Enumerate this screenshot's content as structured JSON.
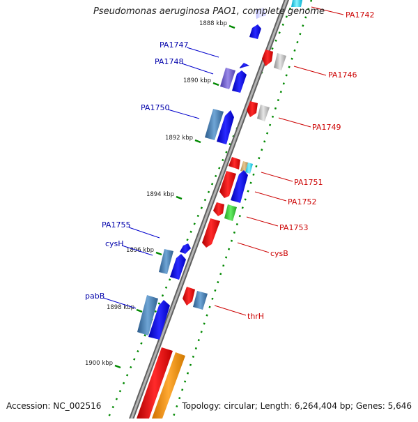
{
  "map": {
    "title": "Pseudomonas aeruginosa PAO1, complete genome",
    "accession": "Accession: NC_002516",
    "summary": "Topology: circular; Length: 6,264,404 bp; Genes: 5,646"
  },
  "scale_ticks": [
    {
      "label": "1888 kbp"
    },
    {
      "label": "1890 kbp"
    },
    {
      "label": "1892 kbp"
    },
    {
      "label": "1894 kbp"
    },
    {
      "label": "1896 kbp"
    },
    {
      "label": "1898 kbp"
    },
    {
      "label": "1900 kbp"
    }
  ],
  "genes_left": [
    {
      "label": "PA1747"
    },
    {
      "label": "PA1748"
    },
    {
      "label": "PA1750"
    },
    {
      "label": "PA1755"
    },
    {
      "label": "cysH"
    },
    {
      "label": "pabB"
    }
  ],
  "genes_right": [
    {
      "label": "PA1742"
    },
    {
      "label": "PA1746"
    },
    {
      "label": "PA1749"
    },
    {
      "label": "PA1751"
    },
    {
      "label": "PA1752"
    },
    {
      "label": "PA1753"
    },
    {
      "label": "cysB"
    },
    {
      "label": "thrH"
    }
  ],
  "colors": {
    "forward_strand": "#0000ee",
    "reverse_strand": "#ee0000",
    "left_label": "#0000aa",
    "right_label": "#cc0000",
    "tick": "#008800",
    "backbone": "#808080"
  }
}
